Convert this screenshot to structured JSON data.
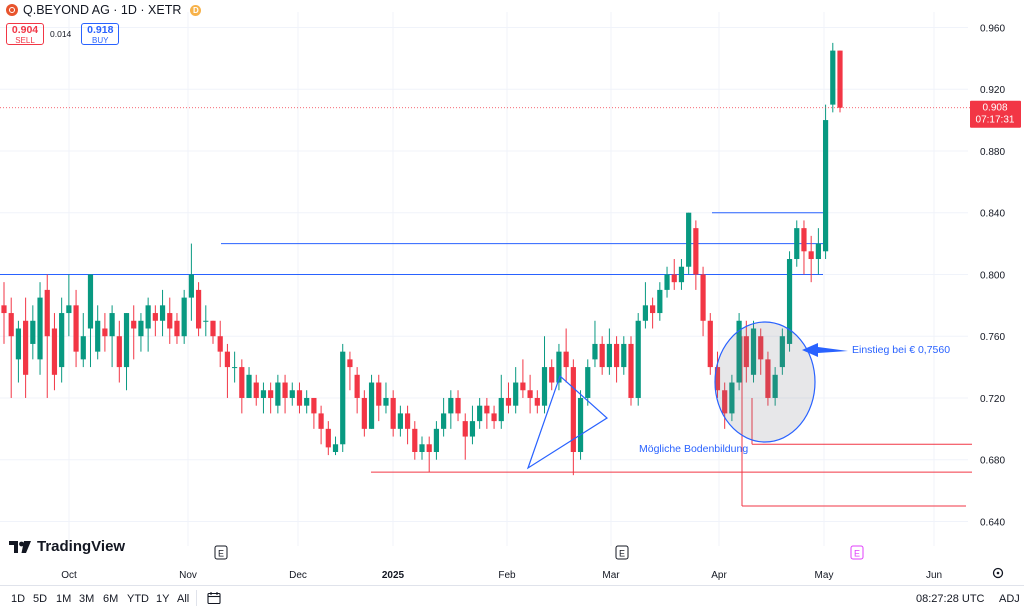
{
  "header": {
    "title": "Q.BEYOND AG · 1D · XETR",
    "badge": "D",
    "sell_price": "0.904",
    "sell_label": "SELL",
    "spread": "0.014",
    "buy_price": "0.918",
    "buy_label": "BUY"
  },
  "branding": {
    "name": "TradingView"
  },
  "toolbar": {
    "ranges": [
      "1D",
      "5D",
      "1M",
      "3M",
      "6M",
      "YTD",
      "1Y",
      "All"
    ],
    "time": "08:27:28 UTC",
    "adj_label": "ADJ"
  },
  "chart_data": {
    "type": "candlestick",
    "symbol": "Q.BEYOND AG",
    "interval": "1D",
    "exchange": "XETR",
    "ylim": [
      0.63,
      0.97
    ],
    "y_ticks": [
      0.64,
      0.68,
      0.72,
      0.76,
      0.8,
      0.84,
      0.88,
      0.92,
      0.96
    ],
    "y_tick_labels": [
      "0.640",
      "0.680",
      "0.720",
      "0.760",
      "0.800",
      "0.840",
      "0.880",
      "0.920",
      "0.960"
    ],
    "x_labels": [
      "Oct",
      "Nov",
      "Dec",
      "2025",
      "Feb",
      "Mar",
      "Apr",
      "May",
      "Jun"
    ],
    "current_price": {
      "label": "0.908",
      "countdown": "07:17:31",
      "value": 0.908
    },
    "colors": {
      "up": "#089981",
      "down": "#f23645",
      "drawing": "#2962ff",
      "support": "#f23645"
    },
    "earnings_markers": [
      "E",
      "E",
      "E"
    ],
    "annotations": {
      "entry": "Einstieg bei € 0,7560",
      "bottom": "Mögliche Bodenbildung"
    },
    "key_levels": [
      0.8,
      0.82,
      0.84,
      0.69,
      0.672,
      0.65
    ],
    "candles": [
      [
        0.78,
        0.775,
        0.795,
        0.755
      ],
      [
        0.775,
        0.76,
        0.785,
        0.72
      ],
      [
        0.745,
        0.765,
        0.77,
        0.73
      ],
      [
        0.77,
        0.735,
        0.785,
        0.72
      ],
      [
        0.755,
        0.77,
        0.78,
        0.745
      ],
      [
        0.745,
        0.785,
        0.795,
        0.735
      ],
      [
        0.79,
        0.76,
        0.8,
        0.72
      ],
      [
        0.765,
        0.735,
        0.775,
        0.725
      ],
      [
        0.74,
        0.775,
        0.785,
        0.73
      ],
      [
        0.775,
        0.78,
        0.8,
        0.76
      ],
      [
        0.78,
        0.75,
        0.79,
        0.74
      ],
      [
        0.745,
        0.76,
        0.775,
        0.74
      ],
      [
        0.765,
        0.8,
        0.8,
        0.74
      ],
      [
        0.75,
        0.77,
        0.78,
        0.745
      ],
      [
        0.765,
        0.76,
        0.775,
        0.75
      ],
      [
        0.76,
        0.775,
        0.78,
        0.74
      ],
      [
        0.76,
        0.74,
        0.77,
        0.73
      ],
      [
        0.74,
        0.775,
        0.775,
        0.725
      ],
      [
        0.77,
        0.765,
        0.78,
        0.745
      ],
      [
        0.76,
        0.77,
        0.775,
        0.75
      ],
      [
        0.765,
        0.78,
        0.785,
        0.75
      ],
      [
        0.775,
        0.77,
        0.78,
        0.76
      ],
      [
        0.77,
        0.78,
        0.79,
        0.76
      ],
      [
        0.775,
        0.765,
        0.785,
        0.755
      ],
      [
        0.77,
        0.76,
        0.775,
        0.755
      ],
      [
        0.76,
        0.785,
        0.79,
        0.755
      ],
      [
        0.785,
        0.8,
        0.82,
        0.77
      ],
      [
        0.79,
        0.765,
        0.795,
        0.76
      ],
      [
        0.77,
        0.77,
        0.78,
        0.76
      ],
      [
        0.77,
        0.76,
        0.77,
        0.755
      ],
      [
        0.76,
        0.75,
        0.77,
        0.74
      ],
      [
        0.75,
        0.74,
        0.755,
        0.72
      ],
      [
        0.74,
        0.74,
        0.75,
        0.73
      ],
      [
        0.74,
        0.72,
        0.745,
        0.71
      ],
      [
        0.72,
        0.735,
        0.74,
        0.72
      ],
      [
        0.73,
        0.72,
        0.735,
        0.715
      ],
      [
        0.72,
        0.725,
        0.73,
        0.71
      ],
      [
        0.725,
        0.72,
        0.73,
        0.71
      ],
      [
        0.715,
        0.73,
        0.735,
        0.71
      ],
      [
        0.73,
        0.72,
        0.735,
        0.71
      ],
      [
        0.72,
        0.725,
        0.73,
        0.715
      ],
      [
        0.725,
        0.715,
        0.73,
        0.71
      ],
      [
        0.715,
        0.72,
        0.725,
        0.71
      ],
      [
        0.72,
        0.71,
        0.72,
        0.7
      ],
      [
        0.71,
        0.7,
        0.715,
        0.69
      ],
      [
        0.7,
        0.688,
        0.705,
        0.683
      ],
      [
        0.685,
        0.69,
        0.695,
        0.683
      ],
      [
        0.69,
        0.75,
        0.755,
        0.685
      ],
      [
        0.745,
        0.74,
        0.75,
        0.725
      ],
      [
        0.735,
        0.72,
        0.74,
        0.71
      ],
      [
        0.72,
        0.7,
        0.725,
        0.695
      ],
      [
        0.7,
        0.73,
        0.735,
        0.7
      ],
      [
        0.73,
        0.715,
        0.735,
        0.705
      ],
      [
        0.715,
        0.72,
        0.73,
        0.71
      ],
      [
        0.72,
        0.7,
        0.725,
        0.695
      ],
      [
        0.7,
        0.71,
        0.715,
        0.695
      ],
      [
        0.71,
        0.7,
        0.715,
        0.69
      ],
      [
        0.7,
        0.685,
        0.705,
        0.68
      ],
      [
        0.685,
        0.69,
        0.695,
        0.68
      ],
      [
        0.69,
        0.685,
        0.695,
        0.672
      ],
      [
        0.685,
        0.7,
        0.705,
        0.68
      ],
      [
        0.7,
        0.71,
        0.72,
        0.695
      ],
      [
        0.71,
        0.72,
        0.725,
        0.7
      ],
      [
        0.72,
        0.71,
        0.725,
        0.705
      ],
      [
        0.705,
        0.695,
        0.71,
        0.68
      ],
      [
        0.695,
        0.705,
        0.715,
        0.69
      ],
      [
        0.705,
        0.715,
        0.72,
        0.7
      ],
      [
        0.715,
        0.71,
        0.72,
        0.7
      ],
      [
        0.71,
        0.705,
        0.715,
        0.7
      ],
      [
        0.705,
        0.72,
        0.735,
        0.7
      ],
      [
        0.72,
        0.715,
        0.73,
        0.71
      ],
      [
        0.715,
        0.73,
        0.74,
        0.71
      ],
      [
        0.73,
        0.725,
        0.745,
        0.72
      ],
      [
        0.725,
        0.72,
        0.735,
        0.71
      ],
      [
        0.72,
        0.715,
        0.725,
        0.71
      ],
      [
        0.715,
        0.74,
        0.76,
        0.71
      ],
      [
        0.74,
        0.73,
        0.745,
        0.725
      ],
      [
        0.73,
        0.75,
        0.755,
        0.725
      ],
      [
        0.75,
        0.74,
        0.765,
        0.73
      ],
      [
        0.74,
        0.685,
        0.745,
        0.67
      ],
      [
        0.685,
        0.72,
        0.725,
        0.68
      ],
      [
        0.72,
        0.74,
        0.745,
        0.715
      ],
      [
        0.745,
        0.755,
        0.77,
        0.74
      ],
      [
        0.755,
        0.74,
        0.76,
        0.735
      ],
      [
        0.74,
        0.755,
        0.765,
        0.735
      ],
      [
        0.755,
        0.74,
        0.76,
        0.73
      ],
      [
        0.74,
        0.755,
        0.76,
        0.735
      ],
      [
        0.755,
        0.72,
        0.76,
        0.715
      ],
      [
        0.72,
        0.77,
        0.775,
        0.715
      ],
      [
        0.77,
        0.78,
        0.795,
        0.765
      ],
      [
        0.78,
        0.775,
        0.785,
        0.765
      ],
      [
        0.775,
        0.79,
        0.795,
        0.77
      ],
      [
        0.79,
        0.8,
        0.805,
        0.785
      ],
      [
        0.8,
        0.795,
        0.81,
        0.79
      ],
      [
        0.795,
        0.805,
        0.81,
        0.79
      ],
      [
        0.805,
        0.84,
        0.84,
        0.8
      ],
      [
        0.83,
        0.8,
        0.835,
        0.79
      ],
      [
        0.8,
        0.77,
        0.805,
        0.76
      ],
      [
        0.77,
        0.74,
        0.775,
        0.735
      ],
      [
        0.74,
        0.725,
        0.75,
        0.72
      ],
      [
        0.725,
        0.71,
        0.73,
        0.7
      ],
      [
        0.71,
        0.73,
        0.735,
        0.705
      ],
      [
        0.73,
        0.77,
        0.775,
        0.725
      ],
      [
        0.76,
        0.74,
        0.77,
        0.73
      ],
      [
        0.735,
        0.765,
        0.77,
        0.73
      ],
      [
        0.76,
        0.745,
        0.765,
        0.735
      ],
      [
        0.745,
        0.72,
        0.75,
        0.715
      ],
      [
        0.72,
        0.735,
        0.74,
        0.715
      ],
      [
        0.74,
        0.76,
        0.765,
        0.735
      ],
      [
        0.755,
        0.81,
        0.815,
        0.75
      ],
      [
        0.81,
        0.83,
        0.835,
        0.805
      ],
      [
        0.83,
        0.815,
        0.835,
        0.8
      ],
      [
        0.815,
        0.81,
        0.825,
        0.795
      ],
      [
        0.81,
        0.82,
        0.83,
        0.8
      ],
      [
        0.815,
        0.9,
        0.91,
        0.81
      ],
      [
        0.91,
        0.945,
        0.95,
        0.905
      ],
      [
        0.945,
        0.908,
        0.945,
        0.905
      ]
    ]
  }
}
